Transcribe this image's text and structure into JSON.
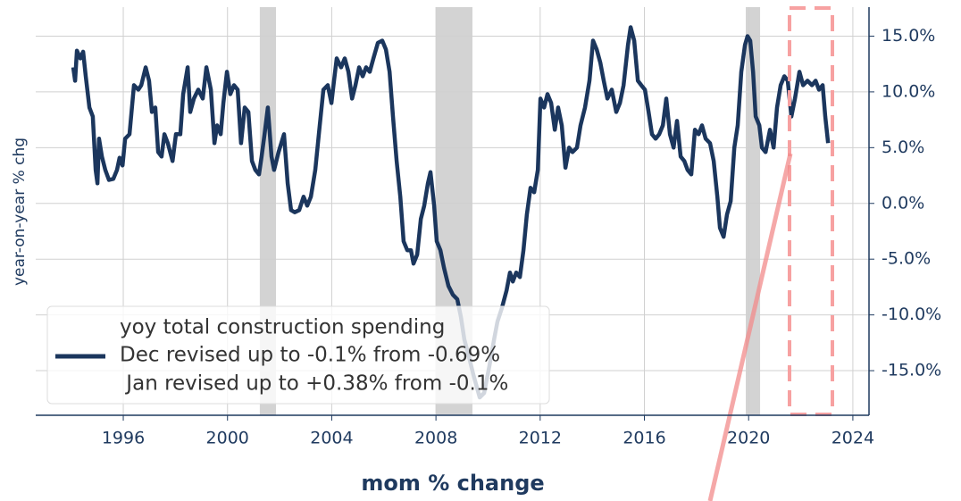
{
  "chart_data": {
    "type": "line",
    "y_label": "year-on-year % chg",
    "x_label": "mom % change",
    "xlim": [
      1992.64,
      2024.62
    ],
    "xticks": [
      1996,
      2000,
      2004,
      2008,
      2012,
      2016,
      2020,
      2024
    ],
    "ylim": [
      -19,
      17.6
    ],
    "yticks": [
      {
        "value": -15,
        "label": "-15.0%"
      },
      {
        "value": -10,
        "label": "-10.0%"
      },
      {
        "value": -5,
        "label": "-5.0%"
      },
      {
        "value": 0,
        "label": "0.0%"
      },
      {
        "value": 5,
        "label": "5.0%"
      },
      {
        "value": 10,
        "label": "10.0%"
      },
      {
        "value": 15,
        "label": "15.0%"
      }
    ],
    "y_axis_side": "right",
    "grid": true,
    "recessions": [
      [
        2001.24,
        2001.86
      ],
      [
        2007.99,
        2009.4
      ],
      [
        2019.89,
        2020.44
      ]
    ],
    "legend_notes": [
      "Dec revised up to -0.1% from -0.69%",
      " Jan revised up to +0.38% from -0.1%"
    ],
    "x": [
      1994.08,
      1994.15,
      1994.22,
      1994.35,
      1994.46,
      1994.56,
      1994.7,
      1994.83,
      1994.94,
      1995.01,
      1995.07,
      1995.18,
      1995.31,
      1995.45,
      1995.62,
      1995.76,
      1995.86,
      1995.97,
      1996.07,
      1996.24,
      1996.41,
      1996.58,
      1996.69,
      1996.86,
      1996.99,
      1997.1,
      1997.23,
      1997.34,
      1997.47,
      1997.58,
      1997.71,
      1997.89,
      1998.02,
      1998.19,
      1998.3,
      1998.47,
      1998.57,
      1998.71,
      1998.88,
      1999.05,
      1999.19,
      1999.36,
      1999.5,
      1999.6,
      1999.74,
      1999.84,
      1999.98,
      2000.11,
      2000.25,
      2000.39,
      2000.52,
      2000.66,
      2000.8,
      2000.94,
      2001.07,
      2001.21,
      2001.31,
      2001.42,
      2001.55,
      2001.69,
      2001.79,
      2001.96,
      2002.17,
      2002.31,
      2002.44,
      2002.58,
      2002.75,
      2002.92,
      2003.06,
      2003.2,
      2003.37,
      2003.54,
      2003.68,
      2003.85,
      2003.99,
      2004.09,
      2004.19,
      2004.36,
      2004.5,
      2004.64,
      2004.78,
      2004.91,
      2005.05,
      2005.19,
      2005.32,
      2005.46,
      2005.6,
      2005.77,
      2005.94,
      2006.08,
      2006.22,
      2006.35,
      2006.49,
      2006.63,
      2006.76,
      2006.9,
      2007.04,
      2007.14,
      2007.28,
      2007.42,
      2007.55,
      2007.69,
      2007.79,
      2007.93,
      2008.03,
      2008.17,
      2008.31,
      2008.48,
      2008.65,
      2008.82,
      2008.96,
      2009.09,
      2009.27,
      2009.44,
      2009.68,
      2009.85,
      2010.05,
      2010.23,
      2010.36,
      2010.53,
      2010.71,
      2010.84,
      2010.95,
      2011.08,
      2011.22,
      2011.36,
      2011.49,
      2011.63,
      2011.77,
      2011.91,
      2012.01,
      2012.15,
      2012.28,
      2012.42,
      2012.56,
      2012.69,
      2012.83,
      2012.97,
      2013.11,
      2013.24,
      2013.41,
      2013.55,
      2013.72,
      2013.89,
      2014.03,
      2014.17,
      2014.31,
      2014.44,
      2014.58,
      2014.75,
      2014.92,
      2015.06,
      2015.2,
      2015.37,
      2015.47,
      2015.61,
      2015.75,
      2015.88,
      2016.02,
      2016.16,
      2016.29,
      2016.43,
      2016.57,
      2016.71,
      2016.84,
      2016.98,
      2017.12,
      2017.25,
      2017.39,
      2017.53,
      2017.66,
      2017.8,
      2017.94,
      2018.08,
      2018.21,
      2018.35,
      2018.52,
      2018.66,
      2018.8,
      2018.9,
      2019.04,
      2019.17,
      2019.31,
      2019.45,
      2019.58,
      2019.72,
      2019.86,
      2019.96,
      2020.06,
      2020.17,
      2020.27,
      2020.41,
      2020.51,
      2020.65,
      2020.82,
      2020.96,
      2021.09,
      2021.23,
      2021.37,
      2021.5,
      2021.64,
      2021.78,
      2021.95,
      2022.09,
      2022.26,
      2022.43,
      2022.57,
      2022.7,
      2022.84,
      2022.94,
      2023.05
    ],
    "series": [
      {
        "name": "yoy total construction spending",
        "color": "#1b365d",
        "values": [
          12.2,
          11.0,
          13.7,
          13.0,
          13.6,
          11.4,
          8.6,
          7.8,
          3.0,
          1.8,
          5.8,
          4.2,
          3.0,
          2.1,
          2.2,
          3.0,
          4.1,
          3.4,
          5.8,
          6.2,
          10.6,
          10.2,
          10.6,
          12.2,
          11.0,
          8.2,
          8.6,
          4.6,
          4.2,
          6.2,
          5.4,
          3.8,
          6.2,
          6.2,
          9.8,
          12.2,
          8.2,
          9.4,
          10.2,
          9.4,
          12.2,
          10.2,
          5.4,
          7.0,
          6.2,
          9.0,
          11.8,
          9.8,
          10.6,
          10.2,
          5.4,
          8.6,
          8.2,
          3.8,
          3.0,
          2.6,
          4.2,
          6.2,
          8.6,
          4.2,
          3.0,
          4.6,
          6.2,
          1.8,
          -0.6,
          -0.8,
          -0.6,
          0.6,
          -0.2,
          0.6,
          3.0,
          7.0,
          10.2,
          10.6,
          9.0,
          11.0,
          13.0,
          12.2,
          13.0,
          11.8,
          9.4,
          10.6,
          12.2,
          11.4,
          12.2,
          11.8,
          13.0,
          14.4,
          14.6,
          13.8,
          11.8,
          7.8,
          3.8,
          0.6,
          -3.4,
          -4.2,
          -4.2,
          -5.4,
          -4.6,
          -1.4,
          -0.2,
          1.8,
          2.8,
          -0.2,
          -3.4,
          -4.2,
          -5.8,
          -7.4,
          -8.2,
          -8.6,
          -10.2,
          -12.2,
          -13.8,
          -15.4,
          -17.4,
          -17.0,
          -14.6,
          -12.2,
          -10.6,
          -9.4,
          -7.8,
          -6.2,
          -7.0,
          -6.2,
          -6.6,
          -4.2,
          -1.0,
          1.4,
          1.0,
          3.0,
          9.4,
          8.6,
          9.8,
          9.0,
          6.6,
          8.6,
          7.0,
          3.2,
          5.0,
          4.6,
          5.0,
          7.0,
          8.6,
          11.0,
          14.6,
          13.8,
          12.6,
          11.0,
          9.4,
          10.2,
          8.2,
          9.0,
          10.6,
          14.2,
          15.8,
          14.6,
          11.0,
          10.6,
          10.2,
          8.2,
          6.2,
          5.8,
          6.2,
          7.0,
          9.4,
          6.2,
          5.0,
          7.4,
          4.2,
          3.8,
          3.0,
          2.6,
          6.6,
          6.2,
          7.0,
          5.8,
          5.4,
          3.8,
          0.6,
          -2.2,
          -3.0,
          -1.0,
          0.2,
          5.0,
          7.0,
          11.8,
          14.2,
          15.0,
          14.6,
          11.8,
          7.8,
          7.0,
          5.0,
          4.6,
          6.6,
          5.0,
          8.6,
          10.6,
          11.4,
          11.0,
          7.8,
          9.4,
          11.8,
          10.6,
          11.0,
          10.6,
          11.0,
          10.2,
          10.6,
          7.8,
          5.4
        ]
      }
    ]
  }
}
